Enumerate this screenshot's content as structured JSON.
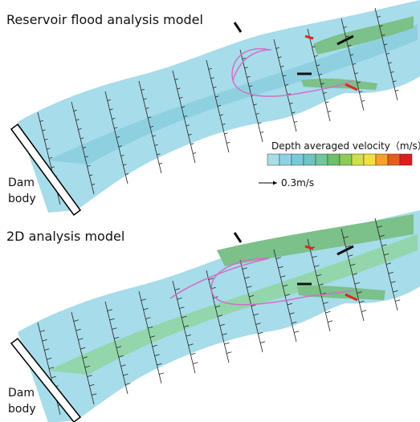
{
  "panels": [
    {
      "title": "Reservoir flood analysis model",
      "dam_label": [
        "Dam",
        "body"
      ]
    },
    {
      "title": "2D analysis model",
      "dam_label": [
        "Dam",
        "body"
      ]
    }
  ],
  "legend": {
    "title": "Depth averaged velocity（m/s）",
    "scale_label": "0.3m/s"
  }
}
